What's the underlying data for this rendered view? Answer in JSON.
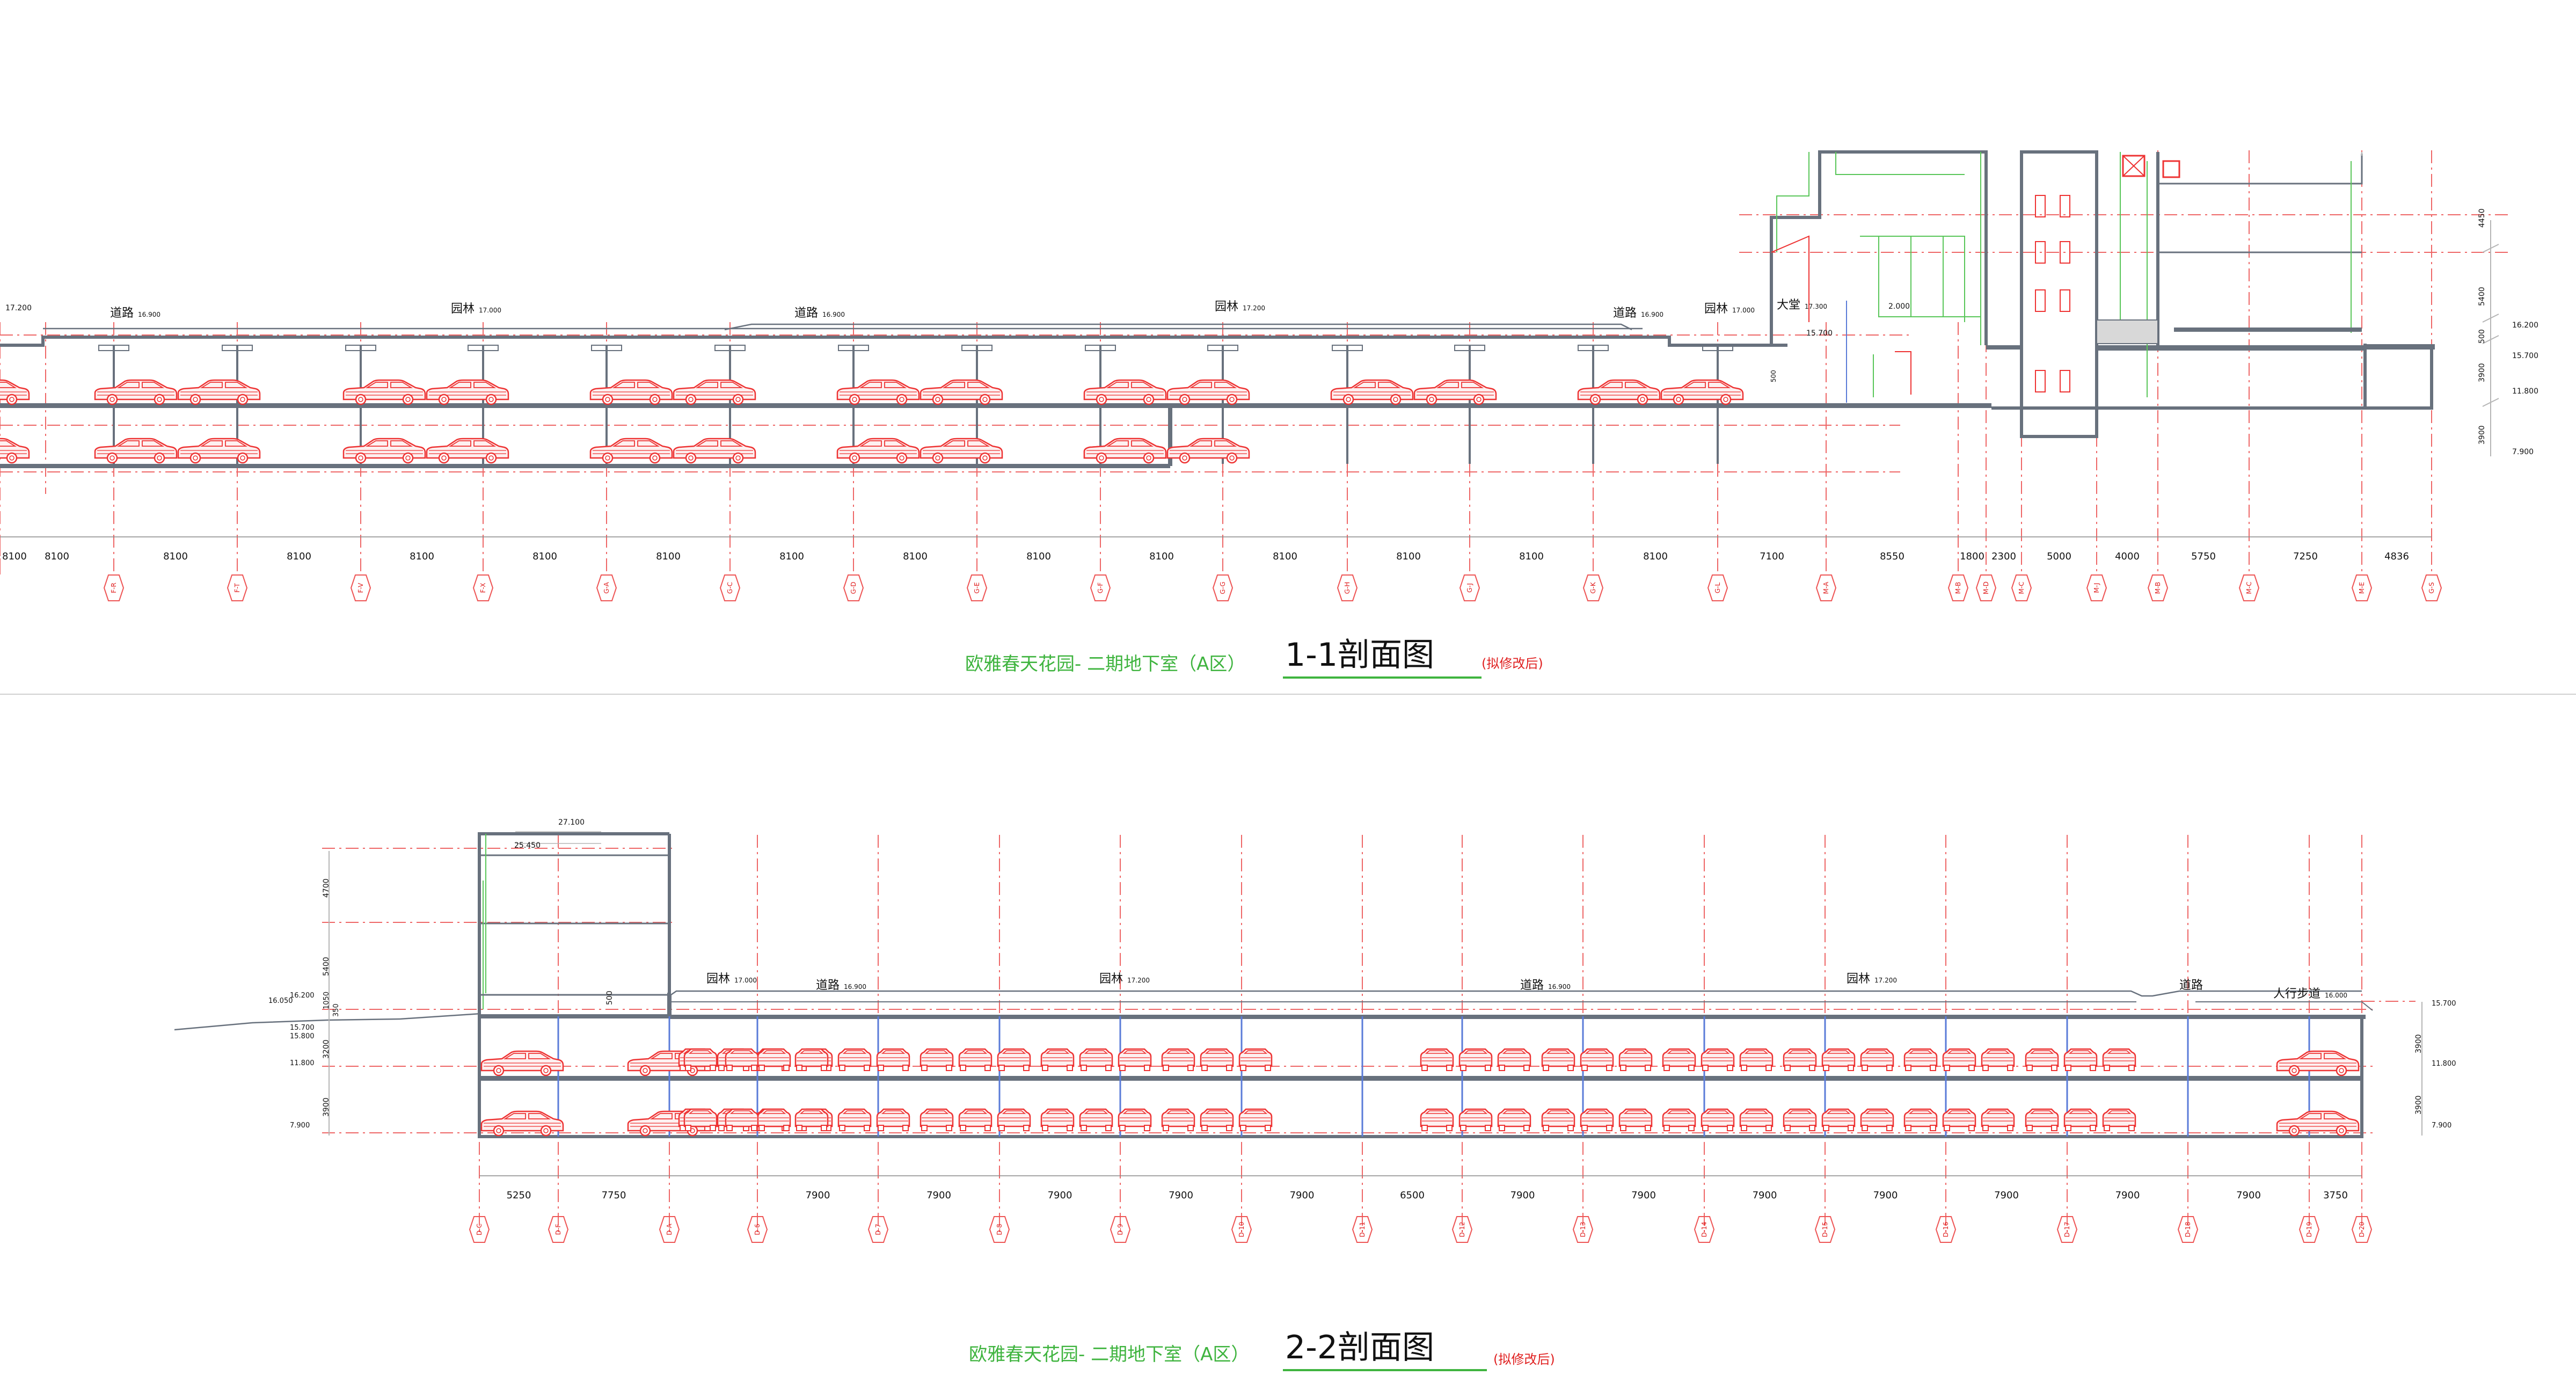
{
  "section_1": {
    "title_prefix": "欧雅春天花园- 二期地下室（A区）",
    "title_main": "1-1剖面图",
    "title_note": "(拟修改后)",
    "ground_labels": [
      "道路",
      "园林",
      "道路",
      "园林",
      "道路",
      "园林",
      "大堂"
    ],
    "ground_elevations": [
      "16.900",
      "17.000",
      "16.900",
      "17.200",
      "16.900",
      "17.000",
      "17.300"
    ],
    "inner_labels": [
      "15.700",
      "2.000",
      "500"
    ],
    "side_dims": [
      "4450",
      "5400",
      "500",
      "3900",
      "3900"
    ],
    "side_elevations": [
      "16.200",
      "15.700",
      "11.800",
      "7.900"
    ],
    "left_elevation": "17.200",
    "spans": [
      "8100",
      "8100",
      "8100",
      "8100",
      "8100",
      "8100",
      "8100",
      "8100",
      "8100",
      "8100",
      "8100",
      "8100",
      "8100",
      "8100",
      "7100",
      "8550",
      "1800",
      "2300",
      "5000",
      "4000",
      "5750",
      "7250",
      "4836"
    ],
    "axes": [
      "F-R",
      "F-T",
      "F-V",
      "F-X",
      "G-A",
      "G-C",
      "G-D",
      "G-E",
      "G-F",
      "G-G",
      "G-H",
      "G-J",
      "G-K",
      "G-L",
      "M-A",
      "M-B",
      "M-D",
      "M-C",
      "M-J",
      "M-B",
      "M-C",
      "M-E",
      "G-S"
    ]
  },
  "section_2": {
    "title_prefix": "欧雅春天花园- 二期地下室（A区）",
    "title_main": "2-2剖面图",
    "title_note": "(拟修改后)",
    "ground_labels": [
      "园林",
      "道路",
      "园林",
      "道路",
      "园林",
      "道路",
      "人行步道"
    ],
    "ground_elevations": [
      "17.000",
      "16.900",
      "17.200",
      "16.900",
      "17.200",
      "",
      "16.000"
    ],
    "top_elevations": [
      "27.100",
      "25.450"
    ],
    "inner_labels": [
      "500"
    ],
    "left_dims": [
      "4700",
      "5400",
      "1050",
      "350",
      "3200",
      "3900"
    ],
    "left_elevations": [
      "16.200",
      "16.050",
      "15.700",
      "15.800",
      "11.800",
      "7.900"
    ],
    "right_dims": [
      "3900",
      "3900"
    ],
    "right_elevations": [
      "15.700",
      "11.800",
      "7.900"
    ],
    "spans": [
      "5250",
      "7750",
      "7900",
      "7900",
      "7900",
      "7900",
      "7900",
      "6500",
      "7900",
      "7900",
      "7900",
      "7900",
      "7900",
      "7900",
      "7900",
      "3750"
    ],
    "axes": [
      "D-C",
      "D-F",
      "D-A",
      "D-6",
      "D-7",
      "D-8",
      "D-9",
      "D-10",
      "D-11",
      "D-12",
      "D-13",
      "D-14",
      "D-15",
      "D-16",
      "D-17",
      "D-18",
      "D-19",
      "D-20"
    ]
  }
}
